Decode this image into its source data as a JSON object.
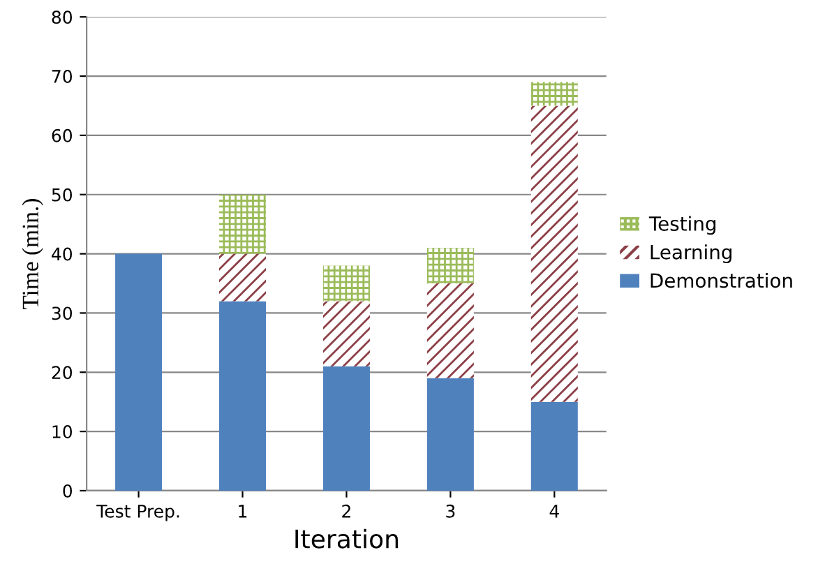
{
  "chart_data": {
    "type": "bar",
    "stacked": true,
    "xlabel": "Iteration",
    "ylabel": "Time (min.)",
    "categories": [
      "Test Prep.",
      "1",
      "2",
      "3",
      "4"
    ],
    "series": [
      {
        "name": "Demonstration",
        "color": "#4f81bd",
        "values": [
          40,
          32,
          21,
          19,
          15
        ]
      },
      {
        "name": "Learning",
        "color": "#8c3f46",
        "values": [
          0,
          8,
          11,
          16,
          50
        ]
      },
      {
        "name": "Testing",
        "color": "#9bbb59",
        "values": [
          0,
          10,
          6,
          6,
          4
        ]
      }
    ],
    "ylim": [
      0,
      80
    ],
    "yticks": [
      0,
      10,
      20,
      30,
      40,
      50,
      60,
      70,
      80
    ],
    "grid": "y",
    "legend": "right"
  }
}
